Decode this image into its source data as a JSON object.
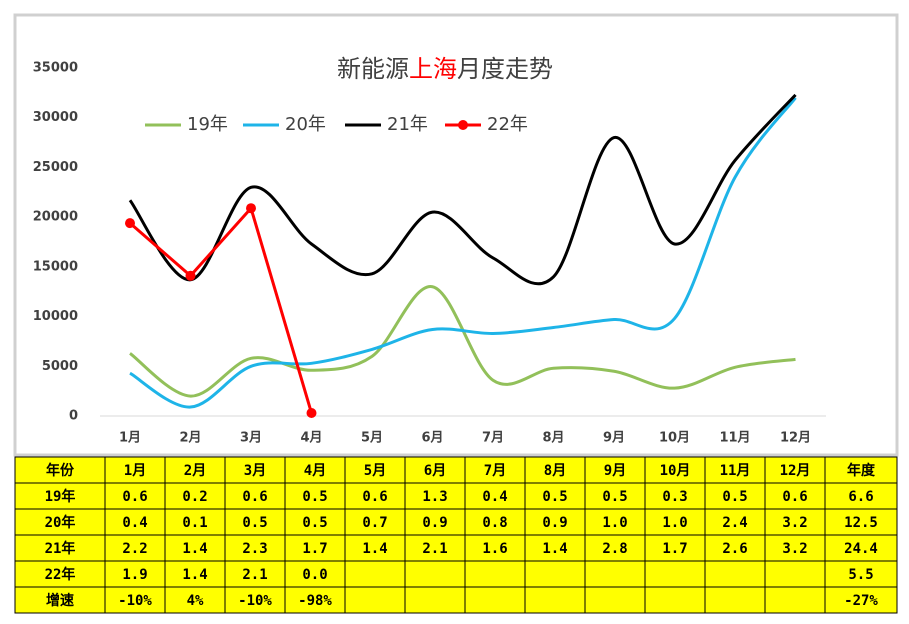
{
  "chart_data": {
    "type": "line",
    "title": [
      "新能源",
      "上海",
      "月度走势"
    ],
    "title_colors": [
      "#404040",
      "#ff0000",
      "#404040"
    ],
    "categories": [
      "1月",
      "2月",
      "3月",
      "4月",
      "5月",
      "6月",
      "7月",
      "8月",
      "9月",
      "10月",
      "11月",
      "12月"
    ],
    "series": [
      {
        "name": "19年",
        "color": "#92c05a",
        "smooth": true,
        "markers": false,
        "values": [
          6300,
          2000,
          5800,
          4600,
          6000,
          13000,
          3600,
          4800,
          4500,
          2800,
          4900,
          5700
        ]
      },
      {
        "name": "20年",
        "color": "#1eb4e8",
        "smooth": true,
        "markers": false,
        "values": [
          4300,
          900,
          5000,
          5300,
          6700,
          8700,
          8300,
          8900,
          9700,
          9800,
          24000,
          32000
        ]
      },
      {
        "name": "21年",
        "color": "#000000",
        "smooth": true,
        "markers": false,
        "values": [
          21700,
          13700,
          23000,
          17300,
          14300,
          20500,
          15900,
          14000,
          28000,
          17300,
          25700,
          32300
        ]
      },
      {
        "name": "22年",
        "color": "#ff0000",
        "smooth": false,
        "markers": true,
        "values": [
          19400,
          14100,
          20900,
          300,
          null,
          null,
          null,
          null,
          null,
          null,
          null,
          null
        ]
      }
    ],
    "ylim": [
      0,
      35000
    ],
    "yticks": [
      0,
      5000,
      10000,
      15000,
      20000,
      25000,
      30000,
      35000
    ],
    "grid": false,
    "legend": "top"
  },
  "table": {
    "header": [
      "年份",
      "1月",
      "2月",
      "3月",
      "4月",
      "5月",
      "6月",
      "7月",
      "8月",
      "9月",
      "10月",
      "11月",
      "12月",
      "年度"
    ],
    "rows": [
      [
        "19年",
        "0.6",
        "0.2",
        "0.6",
        "0.5",
        "0.6",
        "1.3",
        "0.4",
        "0.5",
        "0.5",
        "0.3",
        "0.5",
        "0.6",
        "6.6"
      ],
      [
        "20年",
        "0.4",
        "0.1",
        "0.5",
        "0.5",
        "0.7",
        "0.9",
        "0.8",
        "0.9",
        "1.0",
        "1.0",
        "2.4",
        "3.2",
        "12.5"
      ],
      [
        "21年",
        "2.2",
        "1.4",
        "2.3",
        "1.7",
        "1.4",
        "2.1",
        "1.6",
        "1.4",
        "2.8",
        "1.7",
        "2.6",
        "3.2",
        "24.4"
      ],
      [
        "22年",
        "1.9",
        "1.4",
        "2.1",
        "0.0",
        null,
        null,
        null,
        null,
        null,
        null,
        null,
        null,
        "5.5"
      ],
      [
        "增速",
        "-10%",
        "4%",
        "-10%",
        "-98%",
        null,
        null,
        null,
        null,
        null,
        null,
        null,
        null,
        "-27%"
      ]
    ]
  }
}
